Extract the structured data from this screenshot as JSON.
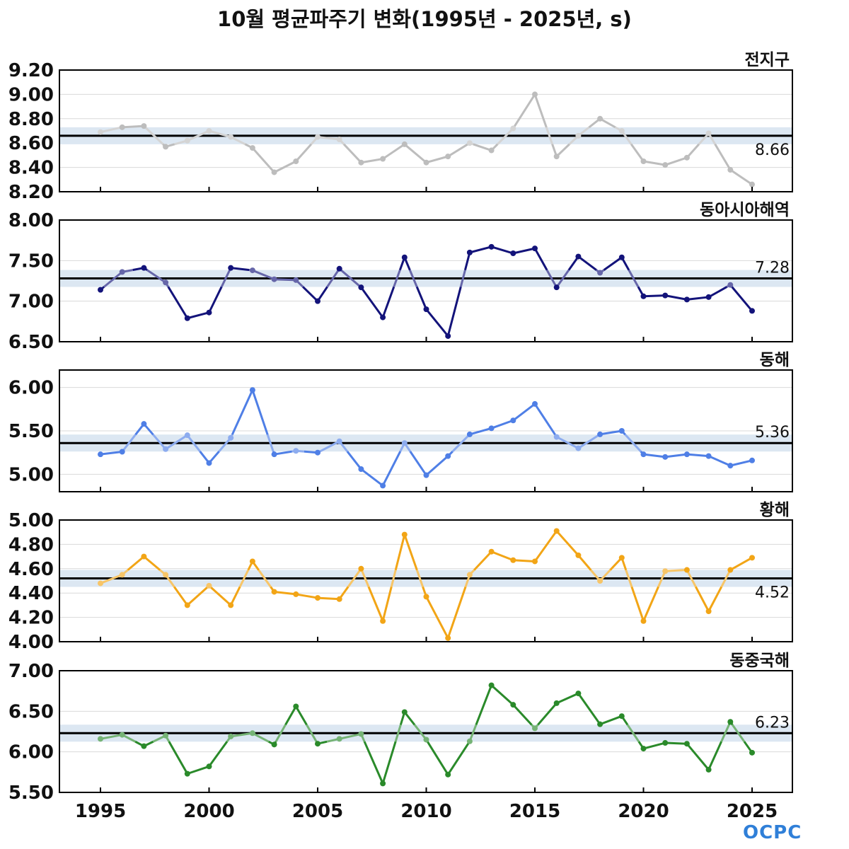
{
  "title": "10월 평균파주기 변화(1995년 - 2025년, s)",
  "logo_text": "OCPC",
  "chart_data": [
    {
      "type": "line",
      "region": "전지구",
      "color": "#bdbdbd",
      "x": [
        1995,
        1996,
        1997,
        1998,
        1999,
        2000,
        2001,
        2002,
        2003,
        2004,
        2005,
        2006,
        2007,
        2008,
        2009,
        2010,
        2011,
        2012,
        2013,
        2014,
        2015,
        2016,
        2017,
        2018,
        2019,
        2020,
        2021,
        2022,
        2023,
        2024,
        2025
      ],
      "values": [
        8.69,
        8.73,
        8.74,
        8.57,
        8.62,
        8.7,
        8.65,
        8.56,
        8.36,
        8.45,
        8.65,
        8.63,
        8.44,
        8.47,
        8.59,
        8.44,
        8.49,
        8.6,
        8.54,
        8.72,
        9.0,
        8.49,
        8.66,
        8.8,
        8.7,
        8.45,
        8.42,
        8.48,
        8.68,
        8.38,
        8.26
      ],
      "mean": 8.66,
      "mean_label": "8.66",
      "ylim": [
        8.2,
        9.2
      ],
      "yticks": [
        "8.20",
        "8.40",
        "8.60",
        "8.80",
        "9.00",
        "9.20"
      ]
    },
    {
      "type": "line",
      "region": "동아시아해역",
      "color": "#13137a",
      "x": [
        1995,
        1996,
        1997,
        1998,
        1999,
        2000,
        2001,
        2002,
        2003,
        2004,
        2005,
        2006,
        2007,
        2008,
        2009,
        2010,
        2011,
        2012,
        2013,
        2014,
        2015,
        2016,
        2017,
        2018,
        2019,
        2020,
        2021,
        2022,
        2023,
        2024,
        2025
      ],
      "values": [
        7.14,
        7.36,
        7.41,
        7.23,
        6.79,
        6.86,
        7.41,
        7.38,
        7.27,
        7.26,
        7.0,
        7.4,
        7.17,
        6.8,
        7.54,
        6.9,
        6.57,
        7.6,
        7.67,
        7.59,
        7.65,
        7.17,
        7.55,
        7.35,
        7.54,
        7.06,
        7.07,
        7.02,
        7.05,
        7.2,
        6.88
      ],
      "mean": 7.28,
      "mean_label": "7.28",
      "ylim": [
        6.5,
        8.0
      ],
      "yticks": [
        "6.50",
        "7.00",
        "7.50",
        "8.00"
      ]
    },
    {
      "type": "line",
      "region": "동해",
      "color": "#4f7fe6",
      "x": [
        1995,
        1996,
        1997,
        1998,
        1999,
        2000,
        2001,
        2002,
        2003,
        2004,
        2005,
        2006,
        2007,
        2008,
        2009,
        2010,
        2011,
        2012,
        2013,
        2014,
        2015,
        2016,
        2017,
        2018,
        2019,
        2020,
        2021,
        2022,
        2023,
        2024,
        2025
      ],
      "values": [
        5.23,
        5.26,
        5.58,
        5.29,
        5.45,
        5.13,
        5.42,
        5.97,
        5.23,
        5.27,
        5.25,
        5.38,
        5.06,
        4.87,
        5.36,
        4.99,
        5.21,
        5.46,
        5.53,
        5.62,
        5.81,
        5.43,
        5.3,
        5.46,
        5.5,
        5.23,
        5.2,
        5.23,
        5.21,
        5.1,
        5.16
      ],
      "mean": 5.36,
      "mean_label": "5.36",
      "ylim": [
        4.8,
        6.2
      ],
      "yticks": [
        "5.00",
        "5.50",
        "6.00"
      ]
    },
    {
      "type": "line",
      "region": "황해",
      "color": "#f2a516",
      "x": [
        1995,
        1996,
        1997,
        1998,
        1999,
        2000,
        2001,
        2002,
        2003,
        2004,
        2005,
        2006,
        2007,
        2008,
        2009,
        2010,
        2011,
        2012,
        2013,
        2014,
        2015,
        2016,
        2017,
        2018,
        2019,
        2020,
        2021,
        2022,
        2023,
        2024,
        2025
      ],
      "values": [
        4.48,
        4.55,
        4.7,
        4.55,
        4.3,
        4.46,
        4.3,
        4.66,
        4.41,
        4.39,
        4.36,
        4.35,
        4.6,
        4.17,
        4.88,
        4.37,
        4.03,
        4.55,
        4.74,
        4.67,
        4.66,
        4.91,
        4.71,
        4.5,
        4.69,
        4.17,
        4.58,
        4.59,
        4.25,
        4.59,
        4.69
      ],
      "mean": 4.52,
      "mean_label": "4.52",
      "ylim": [
        4.0,
        5.0
      ],
      "yticks": [
        "4.00",
        "4.20",
        "4.40",
        "4.60",
        "4.80",
        "5.00"
      ]
    },
    {
      "type": "line",
      "region": "동중국해",
      "color": "#2a8a2a",
      "x": [
        1995,
        1996,
        1997,
        1998,
        1999,
        2000,
        2001,
        2002,
        2003,
        2004,
        2005,
        2006,
        2007,
        2008,
        2009,
        2010,
        2011,
        2012,
        2013,
        2014,
        2015,
        2016,
        2017,
        2018,
        2019,
        2020,
        2021,
        2022,
        2023,
        2024,
        2025
      ],
      "values": [
        6.16,
        6.21,
        6.07,
        6.2,
        5.73,
        5.82,
        6.19,
        6.23,
        6.09,
        6.56,
        6.1,
        6.16,
        6.22,
        5.61,
        6.49,
        6.15,
        5.72,
        6.13,
        6.82,
        6.58,
        6.29,
        6.6,
        6.72,
        6.34,
        6.44,
        6.04,
        6.11,
        6.1,
        5.78,
        6.37,
        5.99
      ],
      "mean": 6.23,
      "mean_label": "6.23",
      "ylim": [
        5.5,
        7.0
      ],
      "yticks": [
        "5.50",
        "6.00",
        "6.50",
        "7.00"
      ]
    }
  ],
  "xticks": [
    "1995",
    "2000",
    "2005",
    "2010",
    "2015",
    "2020",
    "2025"
  ]
}
